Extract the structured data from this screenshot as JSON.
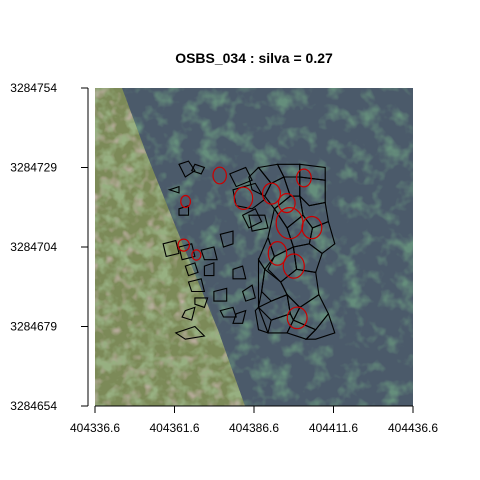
{
  "chart_data": {
    "type": "map",
    "title": "OSBS_034 : silva = 0.27",
    "xlabel": "",
    "ylabel": "",
    "xlim": [
      404336.6,
      404436.6
    ],
    "ylim": [
      3284654,
      3284754
    ],
    "x_ticks": [
      {
        "value": 404336.6,
        "label": "404336.6"
      },
      {
        "value": 404361.6,
        "label": "404361.6"
      },
      {
        "value": 404386.6,
        "label": "404386.6"
      },
      {
        "value": 404411.6,
        "label": "404411.6"
      },
      {
        "value": 404436.6,
        "label": "404436.6"
      }
    ],
    "y_ticks": [
      {
        "value": 3284654,
        "label": "3284654"
      },
      {
        "value": 3284679,
        "label": "3284679"
      },
      {
        "value": 3284704,
        "label": "3284704"
      },
      {
        "value": 3284729,
        "label": "3284729"
      },
      {
        "value": 3284754,
        "label": "3284754"
      }
    ],
    "background": "aerial RGB imagery",
    "series": [
      {
        "color": "#000000",
        "style": "polygon outlines",
        "polygons": [
          [
            [
              404363,
              3284730
            ],
            [
              404366,
              3284731
            ],
            [
              404368,
              3284728
            ],
            [
              404365,
              3284726
            ]
          ],
          [
            [
              404368,
              3284730
            ],
            [
              404371,
              3284729
            ],
            [
              404370,
              3284727
            ],
            [
              404367,
              3284728
            ]
          ],
          [
            [
              404360,
              3284722
            ],
            [
              404363,
              3284723
            ],
            [
              404363,
              3284721
            ]
          ],
          [
            [
              404363,
              3284716
            ],
            [
              404366,
              3284717
            ],
            [
              404366,
              3284714
            ],
            [
              404363,
              3284714
            ]
          ],
          [
            [
              404358,
              3284705
            ],
            [
              404362,
              3284706
            ],
            [
              404363,
              3284702
            ],
            [
              404359,
              3284701
            ]
          ],
          [
            [
              404363,
              3284704
            ],
            [
              404367,
              3284705
            ],
            [
              404368,
              3284701
            ],
            [
              404364,
              3284700
            ]
          ],
          [
            [
              404365,
              3284698
            ],
            [
              404368,
              3284699
            ],
            [
              404369,
              3284696
            ],
            [
              404366,
              3284695
            ]
          ],
          [
            [
              404366,
              3284693
            ],
            [
              404370,
              3284694
            ],
            [
              404371,
              3284690
            ],
            [
              404367,
              3284690
            ]
          ],
          [
            [
              404371,
              3284698
            ],
            [
              404374,
              3284699
            ],
            [
              404374,
              3284695
            ],
            [
              404371,
              3284695
            ]
          ],
          [
            [
              404370,
              3284703
            ],
            [
              404374,
              3284704
            ],
            [
              404375,
              3284700
            ],
            [
              404371,
              3284700
            ]
          ],
          [
            [
              404368,
              3284688
            ],
            [
              404372,
              3284688
            ],
            [
              404371,
              3284685
            ],
            [
              404368,
              3284686
            ]
          ],
          [
            [
              404374,
              3284690
            ],
            [
              404378,
              3284691
            ],
            [
              404378,
              3284687
            ],
            [
              404374,
              3284687
            ]
          ],
          [
            [
              404376,
              3284684
            ],
            [
              404380,
              3284685
            ],
            [
              404381,
              3284682
            ],
            [
              404377,
              3284682
            ]
          ],
          [
            [
              404383,
              3284690
            ],
            [
              404386,
              3284692
            ],
            [
              404387,
              3284688
            ],
            [
              404384,
              3284687
            ]
          ],
          [
            [
              404380,
              3284697
            ],
            [
              404383,
              3284698
            ],
            [
              404384,
              3284694
            ],
            [
              404380,
              3284694
            ]
          ],
          [
            [
              404365,
              3284684
            ],
            [
              404368,
              3284685
            ],
            [
              404367,
              3284681
            ],
            [
              404364,
              3284682
            ]
          ],
          [
            [
              404362,
              3284677
            ],
            [
              404368,
              3284679
            ],
            [
              404371,
              3284676
            ],
            [
              404365,
              3284675
            ]
          ],
          [
            [
              404376,
              3284708
            ],
            [
              404380,
              3284709
            ],
            [
              404380,
              3284705
            ],
            [
              404377,
              3284704
            ]
          ],
          [
            [
              404383,
              3284714
            ],
            [
              404387,
              3284716
            ],
            [
              404389,
              3284712
            ],
            [
              404385,
              3284710
            ]
          ],
          [
            [
              404379,
              3284727
            ],
            [
              404384,
              3284729
            ],
            [
              404386,
              3284725
            ],
            [
              404381,
              3284723
            ]
          ],
          [
            [
              404380,
              3284722
            ],
            [
              404387,
              3284724
            ],
            [
              404390,
              3284719
            ],
            [
              404386,
              3284716
            ],
            [
              404381,
              3284717
            ]
          ],
          [
            [
              404386,
              3284722
            ],
            [
              404390,
              3284720
            ],
            [
              404392,
              3284724
            ],
            [
              404388,
              3284729
            ],
            [
              404385,
              3284726
            ]
          ],
          [
            [
              404385,
              3284714
            ],
            [
              404390,
              3284714
            ],
            [
              404391,
              3284710
            ],
            [
              404386,
              3284709
            ]
          ],
          [
            [
              404388,
              3284729
            ],
            [
              404394,
              3284730
            ],
            [
              404396,
              3284726
            ],
            [
              404392,
              3284724
            ]
          ],
          [
            [
              404394,
              3284730
            ],
            [
              404401,
              3284730
            ],
            [
              404401,
              3284726
            ],
            [
              404396,
              3284726
            ]
          ],
          [
            [
              404401,
              3284730
            ],
            [
              404409,
              3284729
            ],
            [
              404409,
              3284725
            ],
            [
              404401,
              3284726
            ]
          ],
          [
            [
              404392,
              3284724
            ],
            [
              404396,
              3284726
            ],
            [
              404398,
              3284720
            ],
            [
              404393,
              3284716
            ],
            [
              404390,
              3284720
            ]
          ],
          [
            [
              404396,
              3284726
            ],
            [
              404401,
              3284726
            ],
            [
              404401,
              3284720
            ],
            [
              404398,
              3284720
            ]
          ],
          [
            [
              404401,
              3284726
            ],
            [
              404409,
              3284725
            ],
            [
              404409,
              3284718
            ],
            [
              404404,
              3284717
            ],
            [
              404401,
              3284720
            ]
          ],
          [
            [
              404393,
              3284716
            ],
            [
              404398,
              3284720
            ],
            [
              404401,
              3284720
            ],
            [
              404402,
              3284714
            ],
            [
              404397,
              3284710
            ]
          ],
          [
            [
              404402,
              3284714
            ],
            [
              404401,
              3284720
            ],
            [
              404404,
              3284717
            ],
            [
              404409,
              3284718
            ],
            [
              404410,
              3284712
            ],
            [
              404405,
              3284710
            ]
          ],
          [
            [
              404397,
              3284710
            ],
            [
              404402,
              3284714
            ],
            [
              404405,
              3284710
            ],
            [
              404404,
              3284705
            ],
            [
              404399,
              3284704
            ]
          ],
          [
            [
              404405,
              3284710
            ],
            [
              404410,
              3284712
            ],
            [
              404412,
              3284705
            ],
            [
              404408,
              3284702
            ],
            [
              404404,
              3284705
            ]
          ],
          [
            [
              404393,
              3284716
            ],
            [
              404397,
              3284710
            ],
            [
              404399,
              3284704
            ],
            [
              404393,
              3284701
            ],
            [
              404391,
              3284707
            ]
          ],
          [
            [
              404391,
              3284707
            ],
            [
              404393,
              3284701
            ],
            [
              404390,
              3284697
            ],
            [
              404388,
              3284700
            ]
          ],
          [
            [
              404393,
              3284701
            ],
            [
              404399,
              3284704
            ],
            [
              404400,
              3284697
            ],
            [
              404395,
              3284693
            ],
            [
              404391,
              3284697
            ]
          ],
          [
            [
              404399,
              3284704
            ],
            [
              404404,
              3284705
            ],
            [
              404408,
              3284702
            ],
            [
              404406,
              3284696
            ],
            [
              404400,
              3284697
            ]
          ],
          [
            [
              404388,
              3284700
            ],
            [
              404390,
              3284697
            ],
            [
              404389,
              3284690
            ],
            [
              404388,
              3284685
            ]
          ],
          [
            [
              404390,
              3284697
            ],
            [
              404395,
              3284693
            ],
            [
              404397,
              3284689
            ],
            [
              404392,
              3284687
            ],
            [
              404389,
              3284690
            ]
          ],
          [
            [
              404395,
              3284693
            ],
            [
              404400,
              3284697
            ],
            [
              404406,
              3284696
            ],
            [
              404407,
              3284689
            ],
            [
              404401,
              3284685
            ],
            [
              404397,
              3284689
            ]
          ],
          [
            [
              404388,
              3284685
            ],
            [
              404392,
              3284687
            ],
            [
              404397,
              3284689
            ],
            [
              404398,
              3284683
            ],
            [
              404392,
              3284681
            ]
          ],
          [
            [
              404397,
              3284689
            ],
            [
              404401,
              3284685
            ],
            [
              404399,
              3284681
            ],
            [
              404398,
              3284683
            ]
          ],
          [
            [
              404401,
              3284685
            ],
            [
              404407,
              3284689
            ],
            [
              404410,
              3284683
            ],
            [
              404406,
              3284678
            ],
            [
              404399,
              3284681
            ]
          ],
          [
            [
              404392,
              3284681
            ],
            [
              404398,
              3284683
            ],
            [
              404399,
              3284681
            ],
            [
              404397,
              3284677
            ],
            [
              404391,
              3284677
            ]
          ],
          [
            [
              404399,
              3284681
            ],
            [
              404406,
              3284678
            ],
            [
              404403,
              3284675
            ],
            [
              404397,
              3284677
            ]
          ],
          [
            [
              404406,
              3284678
            ],
            [
              404410,
              3284683
            ],
            [
              404412,
              3284677
            ],
            [
              404406,
              3284675
            ],
            [
              404403,
              3284675
            ]
          ],
          [
            [
              404381,
              3284683
            ],
            [
              404384,
              3284684
            ],
            [
              404383,
              3284680
            ],
            [
              404380,
              3284680
            ]
          ],
          [
            [
              404387,
              3284684
            ],
            [
              404388,
              3284685
            ],
            [
              404391,
              3284677
            ],
            [
              404388,
              3284678
            ]
          ]
        ]
      },
      {
        "color": "#cc0000",
        "style": "ellipse outlines",
        "ellipses": [
          [
            404375.8,
            3284726.5,
            2.1,
            2.6
          ],
          [
            404383.3,
            3284719.3,
            2.9,
            3.5
          ],
          [
            404392.1,
            3284720.8,
            2.8,
            3.3
          ],
          [
            404402.3,
            3284725.7,
            2.3,
            2.8
          ],
          [
            404396.9,
            3284717.8,
            2.6,
            3.0
          ],
          [
            404397.8,
            3284711.5,
            4.2,
            4.9
          ],
          [
            404404.8,
            3284710.1,
            3.1,
            3.5
          ],
          [
            404394.0,
            3284702.0,
            2.9,
            3.7
          ],
          [
            404399.1,
            3284698.0,
            3.3,
            3.8
          ],
          [
            404365.1,
            3284718.3,
            1.5,
            1.9
          ],
          [
            404364.5,
            3284704.6,
            1.8,
            1.9
          ],
          [
            404368.5,
            3284701.5,
            1.4,
            1.6
          ],
          [
            404400.2,
            3284681.7,
            3.1,
            3.4
          ]
        ]
      }
    ],
    "grid": false,
    "legend": "none"
  }
}
